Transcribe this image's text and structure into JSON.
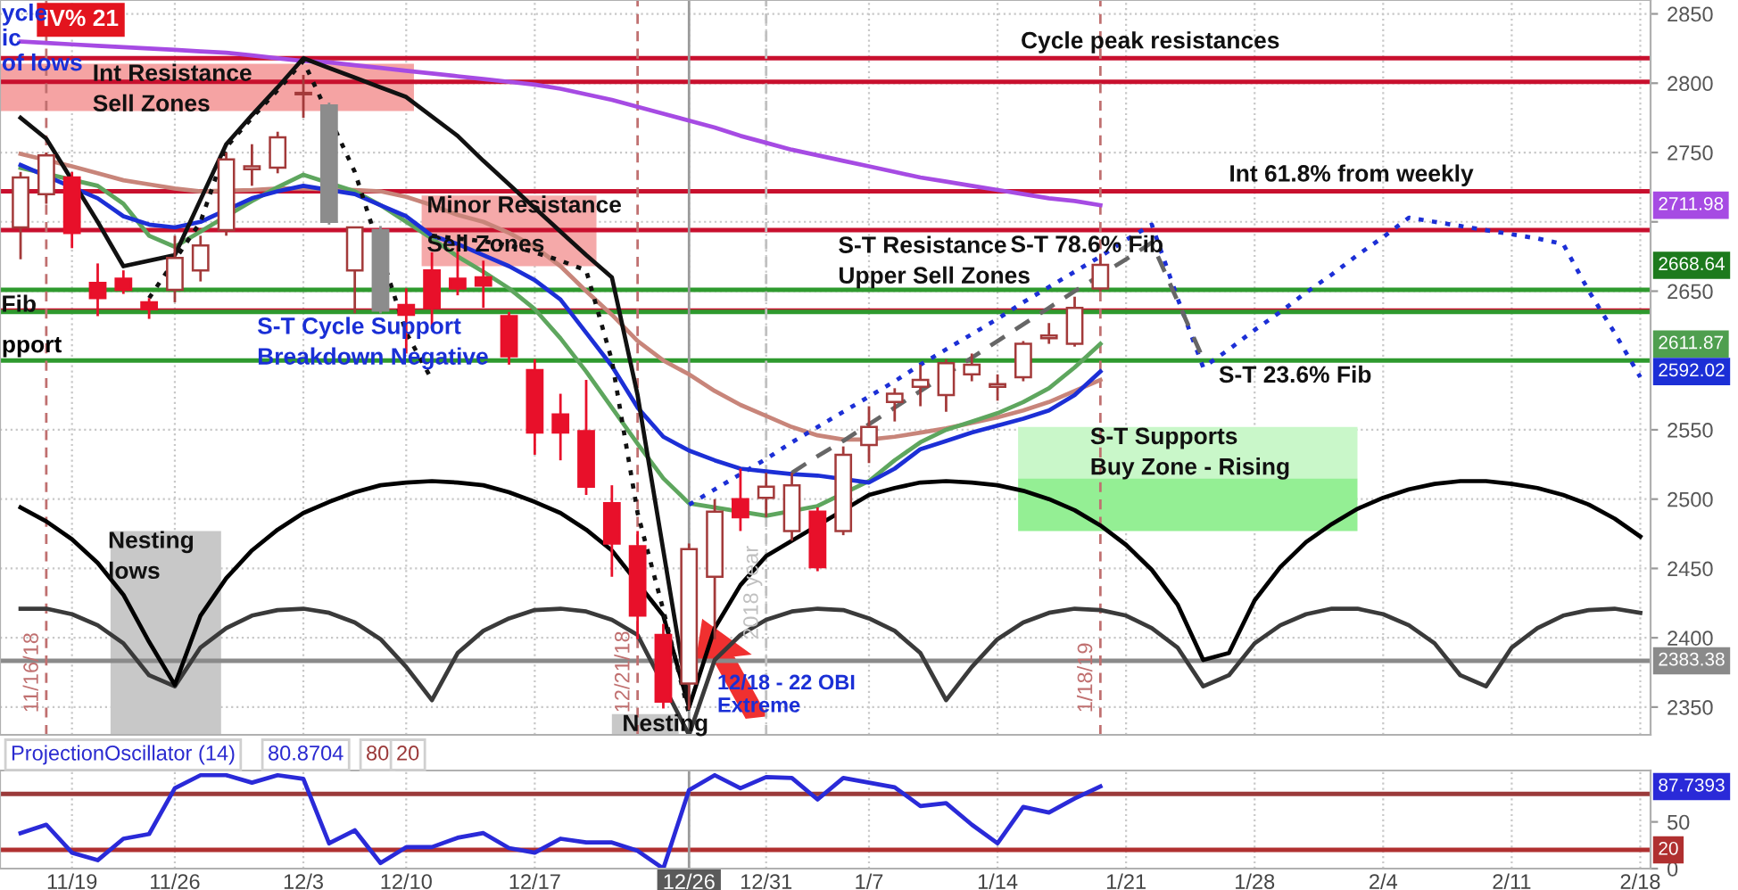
{
  "chart_data": [
    {
      "type": "candlestick",
      "categories": [
        null,
        null,
        "11/19",
        null,
        null,
        null,
        "11/26",
        null,
        null,
        null,
        null,
        "12/3",
        null,
        null,
        null,
        "12/10",
        null,
        null,
        null,
        null,
        "12/17",
        null,
        null,
        null,
        null,
        null,
        "12/26",
        null,
        null,
        "12/31",
        null,
        null,
        null,
        "1/7",
        null,
        null,
        null,
        null,
        "1/14",
        null,
        null,
        null,
        null,
        "1/21",
        null,
        null,
        null,
        null,
        "1/28",
        null,
        null,
        null,
        null,
        "2/4",
        null,
        null,
        null,
        null,
        "2/11",
        null,
        null,
        null,
        null,
        "2/18"
      ],
      "ylim": [
        2330,
        2860
      ],
      "yticks": [
        2350,
        2400,
        2450,
        2500,
        2550,
        2650,
        {
          "value": 2700,
          "label": null
        },
        2750,
        2800,
        2850
      ],
      "tick_labels": "y",
      "grid": true,
      "ohlc": [
        [
          2696,
          2736,
          2673,
          2732
        ],
        [
          2720,
          2750,
          2713,
          2748
        ],
        [
          2732,
          2736,
          2681,
          2692
        ],
        [
          2656,
          2670,
          2632,
          2645
        ],
        [
          2659,
          2665,
          2648,
          2651
        ],
        [
          2642,
          2645,
          2630,
          2637
        ],
        [
          2651,
          2690,
          2642,
          2674
        ],
        [
          2665,
          2690,
          2657,
          2683
        ],
        [
          2694,
          2750,
          2690,
          2745
        ],
        [
          2738,
          2756,
          2726,
          2740
        ],
        [
          2739,
          2765,
          2735,
          2761
        ],
        [
          2792,
          2806,
          2775,
          2793
        ],
        [
          2784,
          2786,
          2698,
          2700
        ],
        [
          2665,
          2696,
          2634,
          2696
        ],
        [
          2694,
          2697,
          2634,
          2636
        ],
        [
          2640,
          2652,
          2605,
          2633
        ],
        [
          2665,
          2678,
          2623,
          2638
        ],
        [
          2659,
          2683,
          2647,
          2652
        ],
        [
          2660,
          2672,
          2638,
          2654
        ],
        [
          2632,
          2635,
          2597,
          2603
        ],
        [
          2593,
          2601,
          2532,
          2548
        ],
        [
          2561,
          2576,
          2528,
          2548
        ],
        [
          2549,
          2586,
          2503,
          2509
        ],
        [
          2497,
          2510,
          2444,
          2468
        ],
        [
          2466,
          2477,
          2399,
          2416
        ],
        [
          2402,
          2410,
          2349,
          2354
        ],
        [
          2367,
          2468,
          2348,
          2464
        ],
        [
          2444,
          2500,
          2399,
          2491
        ],
        [
          2500,
          2522,
          2477,
          2487
        ],
        [
          2501,
          2519,
          2487,
          2509
        ],
        [
          2477,
          2519,
          2470,
          2510
        ],
        [
          2491,
          2494,
          2448,
          2451
        ],
        [
          2477,
          2538,
          2474,
          2532
        ],
        [
          2539,
          2567,
          2526,
          2552
        ],
        [
          2570,
          2580,
          2556,
          2576
        ],
        [
          2581,
          2597,
          2567,
          2586
        ],
        [
          2575,
          2601,
          2563,
          2598
        ],
        [
          2590,
          2605,
          2585,
          2597
        ],
        [
          2583,
          2590,
          2571,
          2581
        ],
        [
          2588,
          2614,
          2585,
          2612
        ],
        [
          2616,
          2627,
          2612,
          2618
        ],
        [
          2612,
          2646,
          2610,
          2638
        ],
        [
          2652,
          2677,
          2650,
          2669
        ],
        null,
        null,
        null,
        null,
        null,
        null,
        null,
        null,
        null,
        null,
        null,
        null,
        null,
        null,
        null,
        null,
        null,
        null,
        null,
        null,
        null
      ],
      "colors": [
        "#ffffff",
        "#ffffff",
        "#e8102a",
        "#e8102a",
        "#e8102a",
        "#e8102a",
        "#ffffff",
        "#ffffff",
        "#ffffff",
        "#ffffff",
        "#ffffff",
        "#ffffff",
        "#8c8c8c",
        "#ffffff",
        "#8c8c8c",
        "#e8102a",
        "#e8102a",
        "#e8102a",
        "#e8102a",
        "#e8102a",
        "#e8102a",
        "#e8102a",
        "#e8102a",
        "#e8102a",
        "#e8102a",
        "#e8102a",
        "#ffffff",
        "#ffffff",
        "#e8102a",
        "#ffffff",
        "#ffffff",
        "#e8102a",
        "#ffffff",
        "#ffffff",
        "#ffffff",
        "#ffffff",
        "#ffffff",
        "#ffffff",
        "#ffffff",
        "#ffffff",
        "#ffffff",
        "#ffffff",
        "#ffffff",
        null,
        null,
        null,
        null,
        null,
        null,
        null,
        null,
        null,
        null,
        null,
        null,
        null,
        null,
        null,
        null,
        null,
        null,
        null,
        null,
        null
      ],
      "bands": [
        {
          "axis": "y",
          "from": 2780,
          "to": 2814,
          "label": "Int Resistance\nSell Zones",
          "color": "#f5a3a3"
        },
        {
          "axis": "y",
          "from": 2668,
          "to": 2719,
          "label": "Minor Resistance\nSell Zones",
          "color": "#f5a9a9"
        },
        {
          "axis": "y",
          "from": 2515,
          "to": 2552,
          "label": "S-T Supports\nBuy Zone - Rising",
          "color": "#c9f7c9"
        },
        {
          "axis": "y",
          "from": 2477,
          "to": 2515,
          "color": "#94ef94"
        },
        {
          "axis": "y",
          "from": 2330,
          "to": 2477,
          "label": "Nesting\nlows",
          "color": "#c8c8c8"
        },
        {
          "axis": "y",
          "from": 2330,
          "to": 2345,
          "label": "Nesting",
          "color": "#c8c8c8"
        }
      ],
      "series": [
        {
          "type": "line",
          "color": "#3a3a3a",
          "values": [
            2421,
            2421,
            2417,
            2409,
            2396,
            2373,
            2365,
            2393,
            2407,
            2416,
            2420,
            2421,
            2418,
            2411,
            2399,
            2379,
            2355,
            2389,
            2405,
            2414,
            2420,
            2421,
            2419,
            2413,
            2402,
            null,
            2330,
            2384,
            2402,
            2413,
            2419,
            2421,
            2420,
            2414,
            2405,
            2389,
            2355,
            2379,
            2399,
            2411,
            2418,
            2421,
            2420,
            2416,
            2407,
            2393,
            2365,
            2373,
            2396,
            2409,
            2417,
            2421,
            2421,
            2417,
            2409,
            2396,
            2373,
            2365,
            2393,
            2407,
            2416,
            2420,
            2421,
            2418
          ]
        },
        {
          "type": "line",
          "color": "#000000",
          "values": [
            2494,
            2484,
            2471,
            2454,
            2431,
            2397,
            2366,
            2416,
            2443,
            2463,
            2478,
            2490,
            2498,
            2505,
            2510,
            2512,
            2513,
            2512,
            2510,
            2505,
            2498,
            2490,
            2478,
            2463,
            null,
            2416,
            2350,
            2407,
            2438,
            2459,
            null,
            null,
            null,
            2503,
            2508,
            2512,
            2513,
            2512,
            2510,
            2506,
            2500,
            2492,
            2481,
            2467,
            2449,
            2424,
            2384,
            2389,
            2427,
            2451,
            2469,
            2482,
            2493,
            2501,
            2507,
            2511,
            2513,
            2513,
            2511,
            2508,
            2503,
            2496,
            2486,
            2473
          ]
        },
        {
          "type": "line",
          "color": "#c8857a",
          "values": [
            2749,
            null,
            2740,
            2735,
            2730,
            2727,
            2724,
            2722,
            null,
            2723,
            2724,
            2724,
            null,
            2723,
            2722,
            2718,
            2712,
            2705,
            2700,
            2692,
            2682,
            2668,
            2650,
            2633,
            2614,
            2600,
            2590,
            2578,
            2568,
            2560,
            2552,
            2546,
            2543,
            2543,
            2545,
            2548,
            2551,
            2555,
            2559,
            2564,
            2570,
            2578,
            2586,
            null,
            null,
            null,
            null,
            null,
            null,
            null,
            null,
            null,
            null,
            null,
            null,
            null,
            null,
            null,
            null,
            null,
            null,
            null,
            null,
            null
          ]
        },
        {
          "type": "line",
          "color": "#5ea65e",
          "values": [
            2739,
            null,
            null,
            2726,
            2713,
            2690,
            2682,
            null,
            null,
            2715,
            2725,
            2734,
            null,
            2722,
            2712,
            2700,
            2688,
            2675,
            2664,
            2652,
            2637,
            2616,
            2592,
            2566,
            2540,
            2515,
            2497,
            null,
            null,
            2488,
            null,
            2495,
            null,
            2513,
            2528,
            2541,
            2550,
            2556,
            2562,
            2570,
            2580,
            2595,
            2612,
            null,
            null,
            null,
            null,
            null,
            null,
            null,
            null,
            null,
            null,
            null,
            null,
            null,
            null,
            null,
            null,
            null,
            null,
            null,
            null,
            null
          ]
        },
        {
          "type": "line",
          "color": "#a64be3",
          "values": [
            2830,
            2829,
            2828,
            2827,
            2826,
            2825,
            2824,
            2823,
            2822,
            2820,
            2818,
            2816,
            2815,
            2813,
            2811,
            2809,
            2807,
            2805,
            2803,
            2801,
            2799,
            2796,
            2792,
            2788,
            2783,
            2778,
            2773,
            2768,
            2762,
            2757,
            2752,
            2748,
            2744,
            2740,
            2736,
            2732,
            2729,
            2726,
            2723,
            2720,
            2717,
            2715,
            2712,
            null,
            null,
            null,
            null,
            null,
            null,
            null,
            null,
            null,
            null,
            null,
            null,
            null,
            null,
            null,
            null,
            null,
            null,
            null,
            null,
            null
          ]
        },
        {
          "type": "line",
          "color": "#1c2fd6",
          "values": [
            2741,
            null,
            null,
            2717,
            2704,
            2698,
            2696,
            2700,
            null,
            2717,
            2722,
            2726,
            null,
            2720,
            2712,
            2704,
            2690,
            2684,
            2676,
            2668,
            2658,
            2644,
            2620,
            2596,
            2566,
            2545,
            2535,
            2528,
            2522,
            2520,
            2518,
            2517,
            null,
            2512,
            2522,
            2536,
            2542,
            2548,
            2553,
            2558,
            2564,
            2575,
            2592,
            null,
            null,
            null,
            null,
            null,
            null,
            null,
            null,
            null,
            null,
            null,
            null,
            null,
            null,
            null,
            null,
            null,
            null,
            null,
            null,
            null
          ]
        },
        {
          "type": "line",
          "color": "#111111",
          "values": [
            2775,
            2760,
            2730,
            2700,
            2668,
            null,
            2676,
            2716,
            2756,
            2777,
            2797,
            2818,
            2811,
            2804,
            2797,
            2790,
            2776,
            2762,
            2744,
            2727,
            2710,
            2693,
            2676,
            2660,
            2575,
            2463,
            2351,
            null,
            null,
            null,
            null,
            null,
            null,
            null,
            null,
            null,
            null,
            null,
            null,
            null,
            null,
            null,
            null,
            null,
            null,
            null,
            null,
            null,
            null,
            null,
            null,
            null,
            null,
            null,
            null,
            null,
            null,
            null,
            null,
            null,
            null,
            null,
            null,
            null
          ]
        },
        {
          "type": "line",
          "color": "#111111",
          "line_style": "dotted",
          "values": [
            null,
            null,
            null,
            null,
            null,
            2645,
            null,
            2700,
            2754,
            2775,
            2795,
            2816,
            null,
            2736,
            null,
            2620,
            2586,
            null,
            null,
            null,
            null,
            null,
            null,
            null,
            null,
            null,
            null,
            null,
            null,
            null,
            null,
            null,
            null,
            null,
            null,
            null,
            null,
            null,
            null,
            null,
            null,
            null,
            null,
            null,
            null,
            null,
            null,
            null,
            null,
            null,
            null,
            null,
            null,
            null,
            null,
            null,
            null,
            null,
            null,
            null,
            null,
            null,
            null,
            null
          ]
        },
        {
          "type": "line",
          "color": "#111111",
          "line_style": "dotted",
          "values": [
            null,
            null,
            null,
            null,
            null,
            null,
            null,
            null,
            null,
            null,
            null,
            null,
            null,
            null,
            null,
            null,
            2690,
            2688,
            2686,
            2683,
            2678,
            2672,
            2665,
            2600,
            2490,
            2420,
            2345,
            null,
            null,
            null,
            null,
            null,
            null,
            null,
            null,
            null,
            null,
            null,
            null,
            null,
            null,
            null,
            null,
            null,
            null,
            null,
            null,
            null,
            null,
            null,
            null,
            null,
            null,
            null,
            null,
            null,
            null,
            null,
            null,
            null,
            null,
            null,
            null,
            null
          ]
        },
        {
          "type": "line",
          "color": "#1c2fd6",
          "line_style": "dotted",
          "values": [
            null,
            null,
            null,
            null,
            null,
            null,
            null,
            null,
            null,
            null,
            null,
            null,
            null,
            null,
            null,
            null,
            null,
            null,
            null,
            null,
            null,
            null,
            null,
            null,
            null,
            null,
            2496,
            2507,
            2518,
            2529,
            2541,
            2552,
            2563,
            2574,
            2585,
            2597,
            2608,
            2619,
            2630,
            2642,
            2653,
            2664,
            2675,
            2687,
            2698,
            2645,
            2595,
            2608,
            2622,
            2635,
            2649,
            2662,
            2676,
            2689,
            2703,
            2700,
            2697,
            2694,
            2691,
            2688,
            2684,
            2650,
            2620,
            2588
          ]
        },
        {
          "type": "line",
          "color": "#666666",
          "line_style": "dashed",
          "values": [
            null,
            null,
            null,
            null,
            null,
            null,
            null,
            null,
            null,
            null,
            null,
            null,
            null,
            null,
            null,
            null,
            null,
            null,
            null,
            null,
            null,
            null,
            null,
            null,
            null,
            null,
            null,
            null,
            null,
            null,
            2519,
            2531,
            2542,
            2554,
            2566,
            2578,
            null,
            2602,
            2614,
            2626,
            2638,
            2650,
            null,
            2673,
            2685,
            2643,
            2601,
            null,
            null,
            null,
            null,
            null,
            null,
            null,
            null,
            null,
            null,
            null,
            null,
            null,
            null,
            null,
            null,
            null
          ]
        }
      ],
      "ref_lines": [
        {
          "axis": "y",
          "value": 2818,
          "label": "Cycle peak resistances",
          "color": "#c8102e"
        },
        {
          "axis": "y",
          "value": 2801,
          "color": "#c8102e"
        },
        {
          "axis": "y",
          "value": 2722,
          "label": "Int 61.8% from weekly",
          "color": "#c8102e"
        },
        {
          "axis": "y",
          "value": 2694,
          "label": "S-T 78.6% Fib",
          "color": "#c8102e"
        },
        {
          "axis": "y",
          "value": 2636,
          "label": "S-T Resistance\nUpper Sell Zones",
          "color": "#c8102e"
        },
        {
          "axis": "y",
          "value": 2651,
          "label": "Fib",
          "color": "#2e9a2e"
        },
        {
          "axis": "y",
          "value": 2635,
          "label": "S-T Cycle Support\nBreakdown Negative",
          "color": "#2e9a2e"
        },
        {
          "axis": "y",
          "value": 2600,
          "label": "S-T 23.6% Fib",
          "color": "#2e9a2e"
        },
        {
          "axis": "y",
          "value": 2383.38,
          "label": "2383.38",
          "color": "#8a8a8a"
        },
        {
          "axis": "x",
          "value": "12/26",
          "color": "#9a9a9a",
          "line_style": "solid"
        }
      ],
      "annotations": [
        "IV% 21",
        "ycle",
        "ic",
        "of lows",
        "pport",
        "12/18 - 22 OBI\nExtreme",
        "11/16/18",
        "12/21/18",
        "2018 year",
        "1/18/19",
        {
          "text": "2711.98",
          "y": 2711.98
        },
        {
          "text": "2668.64",
          "y": 2668.64
        },
        {
          "text": "2611.87",
          "y": 2611.87
        },
        {
          "text": "2592.02",
          "y": 2592.02
        }
      ]
    },
    {
      "type": "line",
      "title": "ProjectionOscillator (14)",
      "categories": [
        null,
        null,
        "11/19",
        null,
        null,
        null,
        "11/26",
        null,
        null,
        null,
        null,
        "12/3",
        null,
        null,
        null,
        "12/10",
        null,
        null,
        null,
        null,
        "12/17",
        null,
        null,
        null,
        null,
        null,
        "12/26",
        null,
        null,
        "12/31",
        null,
        null,
        null,
        "1/7",
        null,
        null,
        null,
        null,
        "1/14",
        null,
        null,
        null,
        null,
        "1/21",
        null,
        null,
        null,
        null,
        "1/28",
        null,
        null,
        null,
        null,
        "2/4",
        null,
        null,
        null,
        null,
        "2/11",
        null,
        null,
        null,
        null,
        "2/18"
      ],
      "ylim": [
        0,
        105
      ],
      "yticks": [
        0,
        50
      ],
      "grid": "x",
      "series": [
        {
          "color": "#2a2ad8",
          "values": [
            38,
            47,
            17,
            9,
            32,
            37,
            86,
            100,
            100,
            92,
            100,
            96,
            27,
            41,
            6,
            23,
            23,
            33,
            38,
            22,
            17,
            32,
            28,
            28,
            19,
            0,
            84,
            100,
            86,
            98,
            97,
            74,
            97,
            92,
            87,
            67,
            70,
            47,
            27,
            66,
            60,
            75,
            88,
            null,
            null,
            null,
            null,
            null,
            null,
            null,
            null,
            null,
            null,
            null,
            null,
            null,
            null,
            null,
            null,
            null,
            null,
            null,
            null,
            null
          ]
        }
      ],
      "ref_lines": [
        {
          "axis": "y",
          "value": 80,
          "color": "#9b3a3a"
        },
        {
          "axis": "y",
          "value": 20,
          "label": "20",
          "color": "#b03030"
        },
        {
          "axis": "x",
          "value": "12/26",
          "color": "#9a9a9a",
          "line_style": "solid"
        }
      ],
      "annotations": [
        "80.8704",
        "80",
        "20",
        {
          "text": "87.7393",
          "y": 87.7393
        }
      ]
    }
  ]
}
